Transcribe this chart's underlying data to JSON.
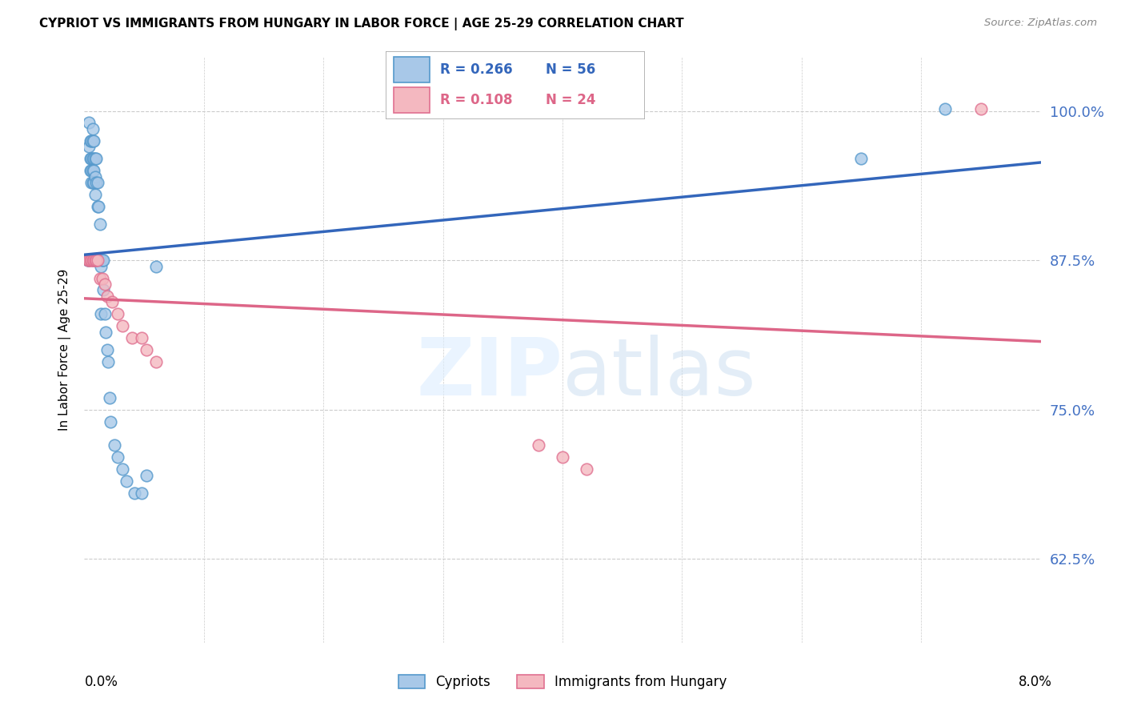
{
  "title": "CYPRIOT VS IMMIGRANTS FROM HUNGARY IN LABOR FORCE | AGE 25-29 CORRELATION CHART",
  "source": "Source: ZipAtlas.com",
  "ylabel": "In Labor Force | Age 25-29",
  "yticks": [
    0.625,
    0.75,
    0.875,
    1.0
  ],
  "ytick_labels": [
    "62.5%",
    "75.0%",
    "87.5%",
    "100.0%"
  ],
  "xmin": 0.0,
  "xmax": 0.08,
  "ymin": 0.555,
  "ymax": 1.045,
  "blue_color": "#a8c8e8",
  "blue_edge": "#5599cc",
  "pink_color": "#f4b8c0",
  "pink_edge": "#e07090",
  "trend_blue": "#3366bb",
  "trend_pink": "#dd6688",
  "blue_R": 0.266,
  "blue_N": 56,
  "pink_R": 0.108,
  "pink_N": 24,
  "blue_x": [
    0.0003,
    0.0003,
    0.0004,
    0.0004,
    0.0005,
    0.0005,
    0.0005,
    0.0006,
    0.0006,
    0.0006,
    0.0006,
    0.0007,
    0.0007,
    0.0007,
    0.0007,
    0.0007,
    0.0008,
    0.0008,
    0.0008,
    0.0008,
    0.0008,
    0.0009,
    0.0009,
    0.0009,
    0.0009,
    0.001,
    0.001,
    0.001,
    0.0011,
    0.0011,
    0.0011,
    0.0012,
    0.0012,
    0.0013,
    0.0013,
    0.0014,
    0.0014,
    0.0015,
    0.0016,
    0.0016,
    0.0017,
    0.0018,
    0.0019,
    0.002,
    0.0021,
    0.0022,
    0.0025,
    0.0028,
    0.0032,
    0.0035,
    0.0042,
    0.0048,
    0.0052,
    0.006,
    0.065,
    0.072
  ],
  "blue_y": [
    0.875,
    0.875,
    0.99,
    0.97,
    0.975,
    0.96,
    0.95,
    0.975,
    0.96,
    0.95,
    0.94,
    0.985,
    0.975,
    0.96,
    0.95,
    0.94,
    0.975,
    0.96,
    0.95,
    0.94,
    0.875,
    0.96,
    0.945,
    0.93,
    0.875,
    0.96,
    0.94,
    0.875,
    0.94,
    0.92,
    0.875,
    0.92,
    0.875,
    0.905,
    0.875,
    0.87,
    0.83,
    0.875,
    0.875,
    0.85,
    0.83,
    0.815,
    0.8,
    0.79,
    0.76,
    0.74,
    0.72,
    0.71,
    0.7,
    0.69,
    0.68,
    0.68,
    0.695,
    0.87,
    0.96,
    1.002
  ],
  "pink_x": [
    0.0003,
    0.0004,
    0.0005,
    0.0006,
    0.0007,
    0.0008,
    0.0009,
    0.001,
    0.0011,
    0.0013,
    0.0015,
    0.0017,
    0.0019,
    0.0023,
    0.0028,
    0.0032,
    0.004,
    0.0048,
    0.0052,
    0.006,
    0.038,
    0.04,
    0.042,
    0.075
  ],
  "pink_y": [
    0.875,
    0.875,
    0.875,
    0.875,
    0.875,
    0.875,
    0.875,
    0.875,
    0.875,
    0.86,
    0.86,
    0.855,
    0.845,
    0.84,
    0.83,
    0.82,
    0.81,
    0.81,
    0.8,
    0.79,
    0.72,
    0.71,
    0.7,
    1.002
  ]
}
